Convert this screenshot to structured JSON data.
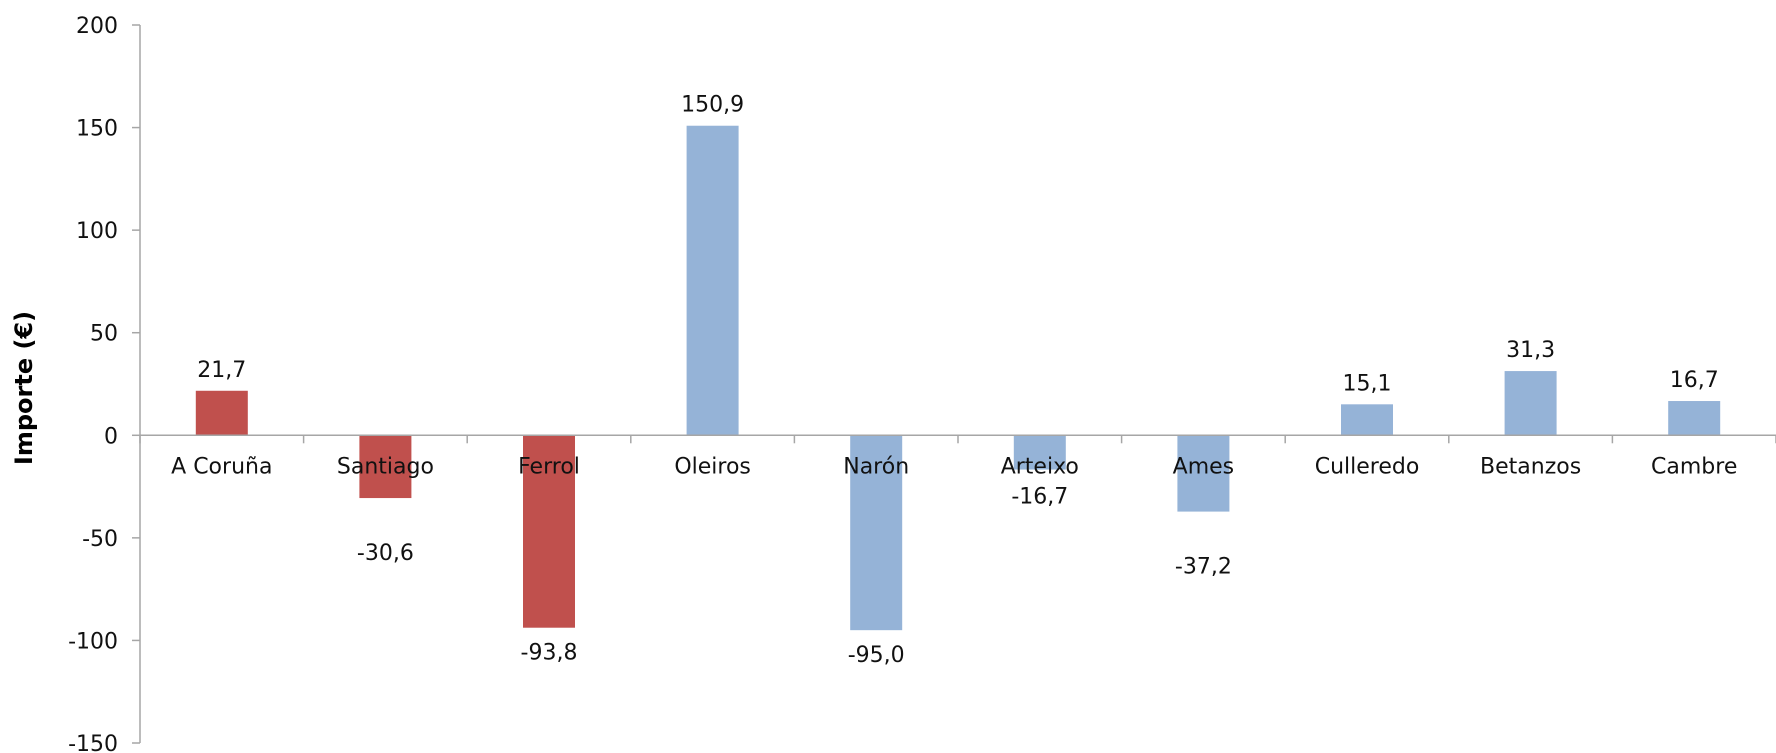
{
  "chart_data": {
    "type": "bar",
    "ylabel": "Importe (€)",
    "xlabel": "",
    "ylim": [
      -150,
      200
    ],
    "yticks": [
      "200",
      "150",
      "100",
      "50",
      "0",
      "-50",
      "-100",
      "-150"
    ],
    "yticks_values": [
      200,
      150,
      100,
      50,
      0,
      -50,
      -100,
      -150
    ],
    "categories": [
      "A Coruña",
      "Santiago",
      "Ferrol",
      "Oleiros",
      "Narón",
      "Arteixo",
      "Ames",
      "Culleredo",
      "Betanzos",
      "Cambre"
    ],
    "values": [
      21.7,
      -30.6,
      -93.8,
      150.9,
      -95.0,
      -16.7,
      -37.2,
      15.1,
      31.3,
      16.7
    ],
    "data_labels": [
      "21,7",
      "-30,6",
      "-93,8",
      "150,9",
      "-95,0",
      "-16,7",
      "-37,2",
      "15,1",
      "31,3",
      "16,7"
    ],
    "bar_colors": [
      "#c0504d",
      "#c0504d",
      "#c0504d",
      "#95b3d7",
      "#95b3d7",
      "#95b3d7",
      "#95b3d7",
      "#95b3d7",
      "#95b3d7",
      "#95b3d7"
    ],
    "grid": false,
    "legend": "none"
  }
}
